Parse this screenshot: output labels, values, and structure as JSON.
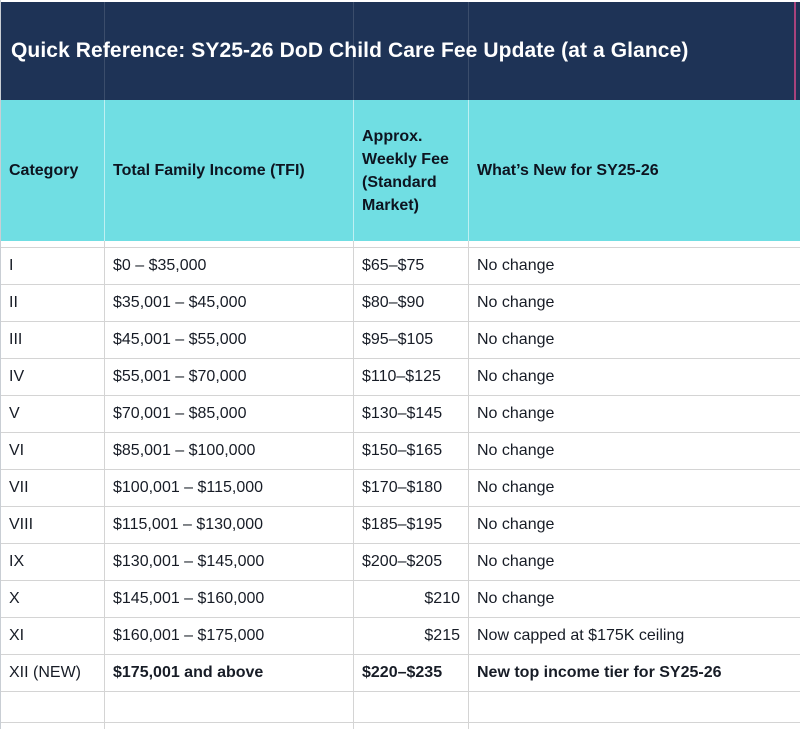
{
  "title": "Quick Reference: SY25-26 DoD Child Care Fee Update (at a Glance)",
  "colors": {
    "title_bg": "#1e3356",
    "title_text": "#ffffff",
    "header_bg": "#70dee3",
    "header_text": "#0d1420",
    "body_text": "#171c26",
    "row_border": "#d4d4d4",
    "magenta_edge": "#a8437c"
  },
  "table": {
    "columns": [
      {
        "label": "Category"
      },
      {
        "label": "Total Family Income (TFI)"
      },
      {
        "label": "Approx. Weekly Fee (Standard Market)"
      },
      {
        "label": "What’s New for SY25-26"
      }
    ],
    "rows": [
      {
        "category": "I",
        "tfi": "$0 – $35,000",
        "fee": "$65–$75",
        "whats_new": "No change",
        "fee_align": "left",
        "emphasis": false
      },
      {
        "category": "II",
        "tfi": "$35,001 – $45,000",
        "fee": "$80–$90",
        "whats_new": "No change",
        "fee_align": "left",
        "emphasis": false
      },
      {
        "category": "III",
        "tfi": "$45,001 – $55,000",
        "fee": "$95–$105",
        "whats_new": "No change",
        "fee_align": "left",
        "emphasis": false
      },
      {
        "category": "IV",
        "tfi": "$55,001 – $70,000",
        "fee": "$110–$125",
        "whats_new": "No change",
        "fee_align": "left",
        "emphasis": false
      },
      {
        "category": "V",
        "tfi": "$70,001 – $85,000",
        "fee": "$130–$145",
        "whats_new": "No change",
        "fee_align": "left",
        "emphasis": false
      },
      {
        "category": "VI",
        "tfi": "$85,001 – $100,000",
        "fee": "$150–$165",
        "whats_new": "No change",
        "fee_align": "left",
        "emphasis": false
      },
      {
        "category": "VII",
        "tfi": "$100,001 – $115,000",
        "fee": "$170–$180",
        "whats_new": "No change",
        "fee_align": "left",
        "emphasis": false
      },
      {
        "category": "VIII",
        "tfi": "$115,001 – $130,000",
        "fee": "$185–$195",
        "whats_new": "No change",
        "fee_align": "left",
        "emphasis": false
      },
      {
        "category": "IX",
        "tfi": "$130,001 – $145,000",
        "fee": "$200–$205",
        "whats_new": "No change",
        "fee_align": "left",
        "emphasis": false
      },
      {
        "category": "X",
        "tfi": "$145,001 – $160,000",
        "fee": "$210",
        "whats_new": "No change",
        "fee_align": "right",
        "emphasis": false
      },
      {
        "category": "XI",
        "tfi": "$160,001 – $175,000",
        "fee": "$215",
        "whats_new": "Now capped at $175K ceiling",
        "fee_align": "right",
        "emphasis": false
      },
      {
        "category": "XII (NEW)",
        "tfi": "$175,001 and above",
        "fee": "$220–$235",
        "whats_new": "New top income tier for SY25-26",
        "fee_align": "left",
        "emphasis": true
      }
    ],
    "trailing_empty_rows": 2
  }
}
